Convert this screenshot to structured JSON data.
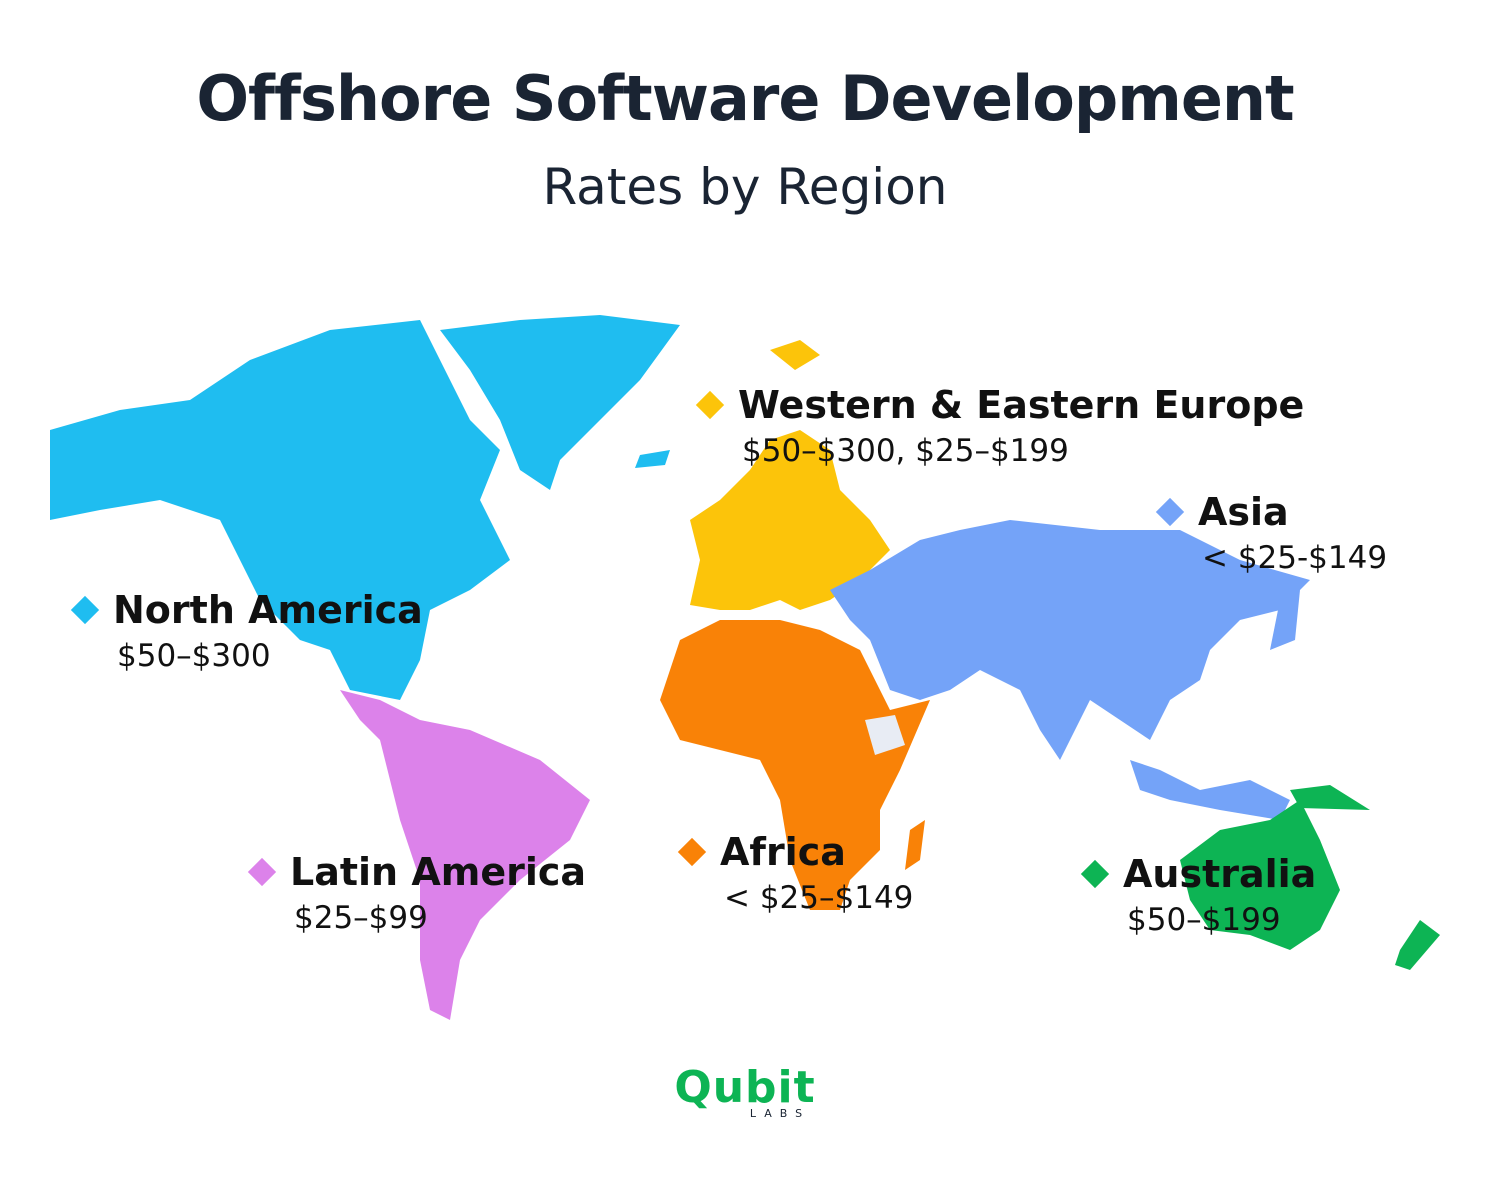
{
  "header": {
    "title": "Offshore Software Development",
    "subtitle": "Rates by Region"
  },
  "regions": [
    {
      "name": "North America",
      "rates": "$50–$300",
      "color": "#1fbdf0"
    },
    {
      "name": "Western & Eastern Europe",
      "rates": "$50–$300, $25–$199",
      "color": "#fcc40a"
    },
    {
      "name": "Asia",
      "rates": "< $25-$149",
      "color": "#74a3f8"
    },
    {
      "name": "Latin America",
      "rates": "$25–$99",
      "color": "#dc82ea"
    },
    {
      "name": "Africa",
      "rates": "< $25–$149",
      "color": "#f98207"
    },
    {
      "name": "Australia",
      "rates": "$50–$199",
      "color": "#0db454"
    }
  ],
  "logo": {
    "name": "Qubit",
    "sub": "LABS"
  }
}
